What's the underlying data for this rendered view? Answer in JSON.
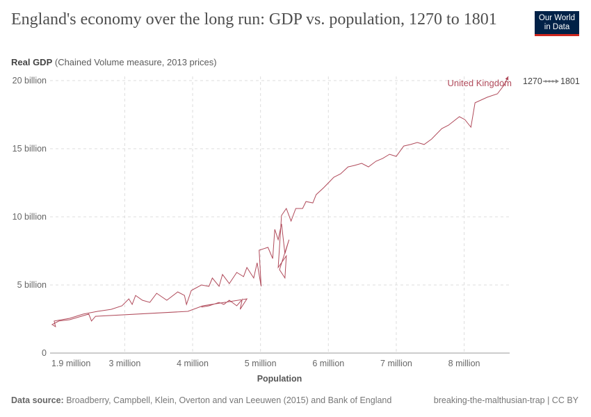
{
  "header": {
    "title": "England's economy over the long run: GDP vs. population, 1270 to 1801",
    "logo_line1": "Our World",
    "logo_line2": "in Data",
    "subtitle_bold": "Real GDP",
    "subtitle_rest": " (Chained Volume measure, 2013 prices)"
  },
  "legend": {
    "start_year": "1270",
    "end_year": "1801"
  },
  "footer": {
    "source_label": "Data source:",
    "source_text": " Broadberry, Campbell, Klein, Overton and van Leeuwen (2015) and Bank of England",
    "license": "breaking-the-malthusian-trap | CC BY"
  },
  "chart_data": {
    "type": "line",
    "title": "England's economy over the long run: GDP vs. population, 1270 to 1801",
    "xlabel": "Population",
    "ylabel": "Real GDP (Chained Volume measure, 2013 prices)",
    "xlim": [
      1.9,
      8.67
    ],
    "ylim": [
      0,
      20
    ],
    "x_unit": "million",
    "y_unit": "billion",
    "x_ticks": [
      {
        "v": 1.9,
        "label": "1.9 million"
      },
      {
        "v": 3,
        "label": "3 million"
      },
      {
        "v": 4,
        "label": "4 million"
      },
      {
        "v": 5,
        "label": "5 million"
      },
      {
        "v": 6,
        "label": "6 million"
      },
      {
        "v": 7,
        "label": "7 million"
      },
      {
        "v": 8,
        "label": "8 million"
      }
    ],
    "y_ticks": [
      {
        "v": 0,
        "label": "0"
      },
      {
        "v": 5,
        "label": "5 billion"
      },
      {
        "v": 10,
        "label": "10 billion"
      },
      {
        "v": 15,
        "label": "15 billion"
      },
      {
        "v": 20,
        "label": "20 billion"
      }
    ],
    "grid": true,
    "color": "#b04a5a",
    "series": [
      {
        "name": "United Kingdom",
        "points": [
          [
            4.13,
            3.37
          ],
          [
            4.24,
            3.47
          ],
          [
            4.39,
            3.72
          ],
          [
            4.46,
            3.57
          ],
          [
            4.54,
            3.88
          ],
          [
            4.65,
            3.47
          ],
          [
            4.73,
            3.93
          ],
          [
            4.7,
            3.21
          ],
          [
            4.8,
            3.98
          ],
          [
            4.15,
            3.47
          ],
          [
            3.93,
            3.06
          ],
          [
            2.57,
            2.7
          ],
          [
            2.51,
            2.35
          ],
          [
            2.47,
            2.86
          ],
          [
            2.19,
            2.45
          ],
          [
            2.03,
            2.35
          ],
          [
            1.93,
            2.09
          ],
          [
            1.98,
            1.94
          ],
          [
            1.96,
            2.35
          ],
          [
            2.19,
            2.55
          ],
          [
            2.39,
            2.86
          ],
          [
            2.6,
            3.06
          ],
          [
            2.8,
            3.21
          ],
          [
            2.96,
            3.47
          ],
          [
            3.06,
            3.98
          ],
          [
            3.11,
            3.57
          ],
          [
            3.16,
            4.23
          ],
          [
            3.26,
            3.88
          ],
          [
            3.37,
            3.72
          ],
          [
            3.47,
            4.39
          ],
          [
            3.62,
            3.88
          ],
          [
            3.78,
            4.49
          ],
          [
            3.88,
            4.23
          ],
          [
            3.91,
            3.57
          ],
          [
            3.98,
            4.59
          ],
          [
            4.13,
            5.0
          ],
          [
            4.24,
            4.9
          ],
          [
            4.29,
            5.51
          ],
          [
            4.39,
            4.9
          ],
          [
            4.44,
            5.77
          ],
          [
            4.54,
            5.1
          ],
          [
            4.65,
            5.92
          ],
          [
            4.75,
            5.61
          ],
          [
            4.8,
            6.28
          ],
          [
            4.9,
            5.51
          ],
          [
            4.95,
            6.63
          ],
          [
            5.01,
            4.9
          ],
          [
            4.98,
            7.55
          ],
          [
            5.11,
            7.76
          ],
          [
            5.18,
            6.94
          ],
          [
            5.21,
            9.08
          ],
          [
            5.26,
            8.32
          ],
          [
            5.31,
            9.49
          ],
          [
            5.36,
            7.3
          ],
          [
            5.42,
            8.32
          ],
          [
            5.28,
            6.12
          ],
          [
            5.36,
            5.51
          ],
          [
            5.38,
            7.14
          ],
          [
            5.26,
            6.28
          ],
          [
            5.31,
            10.1
          ],
          [
            5.38,
            10.61
          ],
          [
            5.45,
            9.69
          ],
          [
            5.52,
            10.61
          ],
          [
            5.62,
            10.61
          ],
          [
            5.67,
            11.12
          ],
          [
            5.77,
            11.02
          ],
          [
            5.82,
            11.63
          ],
          [
            5.93,
            12.14
          ],
          [
            6.03,
            12.65
          ],
          [
            6.08,
            12.91
          ],
          [
            6.18,
            13.16
          ],
          [
            6.29,
            13.67
          ],
          [
            6.39,
            13.78
          ],
          [
            6.49,
            13.93
          ],
          [
            6.59,
            13.67
          ],
          [
            6.7,
            14.08
          ],
          [
            6.8,
            14.29
          ],
          [
            6.9,
            14.59
          ],
          [
            7.0,
            14.44
          ],
          [
            7.11,
            15.2
          ],
          [
            7.21,
            15.31
          ],
          [
            7.31,
            15.46
          ],
          [
            7.41,
            15.31
          ],
          [
            7.52,
            15.71
          ],
          [
            7.67,
            16.48
          ],
          [
            7.77,
            16.73
          ],
          [
            7.93,
            17.35
          ],
          [
            8.01,
            17.14
          ],
          [
            8.1,
            16.58
          ],
          [
            8.16,
            18.37
          ],
          [
            8.34,
            18.78
          ],
          [
            8.49,
            19.03
          ],
          [
            8.59,
            19.69
          ],
          [
            8.65,
            20.31
          ]
        ]
      }
    ]
  }
}
